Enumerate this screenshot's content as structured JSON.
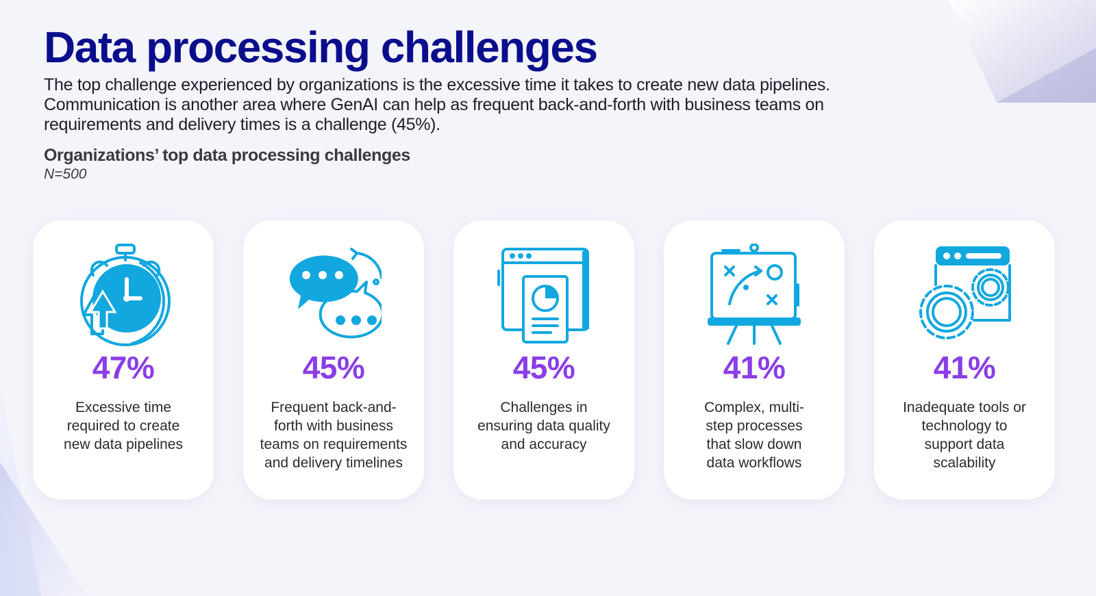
{
  "header": {
    "title": "Data processing challenges",
    "intro_lines": [
      "The top challenge experienced by organizations is the excessive time it takes to create new data pipelines.",
      "Communication is another area where GenAI can help as frequent back-and-forth with business teams on",
      "requirements and delivery times is a challenge (45%)."
    ]
  },
  "chart": {
    "title": "Organizations’ top data processing challenges",
    "sample": "N=500"
  },
  "colors": {
    "title": "#0a0e8c",
    "value": "#8a3ee6",
    "icon": "#13a7df"
  },
  "cards": [
    {
      "value": "47%",
      "icon": "stopwatch-icon",
      "label_lines": [
        "Excessive time",
        "required to create",
        "new data pipelines"
      ]
    },
    {
      "value": "45%",
      "icon": "chat-bubbles-icon",
      "label_lines": [
        "Frequent back-and-",
        "forth with business",
        "teams on requirements",
        "and delivery timelines"
      ]
    },
    {
      "value": "45%",
      "icon": "data-report-icon",
      "label_lines": [
        "Challenges in",
        "ensuring data quality",
        "and accuracy"
      ]
    },
    {
      "value": "41%",
      "icon": "strategy-board-icon",
      "label_lines": [
        "Complex, multi-",
        "step processes",
        "that slow down",
        "data workflows"
      ]
    },
    {
      "value": "41%",
      "icon": "browser-gears-icon",
      "label_lines": [
        "Inadequate tools or",
        "technology to",
        "support data",
        "scalability"
      ]
    }
  ]
}
